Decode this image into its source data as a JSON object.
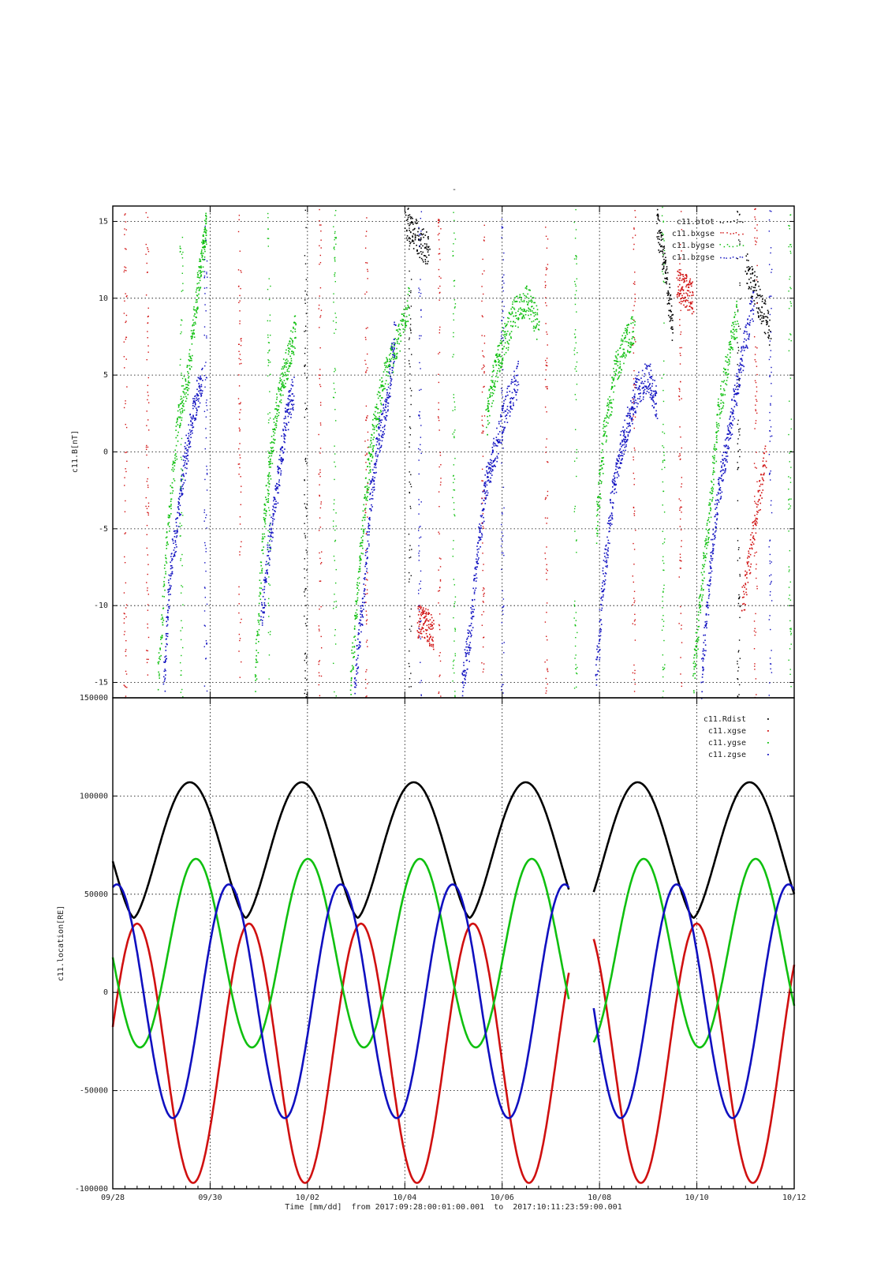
{
  "title": "-",
  "colors": {
    "btot": "#000000",
    "bxgse": "#d01010",
    "bygse": "#10c010",
    "bzgse": "#1010c0",
    "rdist": "#000000",
    "xgse": "#d01010",
    "ygse": "#10c010",
    "zgse": "#1010c0"
  },
  "chart_data": [
    {
      "type": "scatter",
      "title": "",
      "ylabel": "c11.B[nT]",
      "ylim": [
        -16,
        16
      ],
      "yticks": [
        "15",
        "10",
        "5",
        "0",
        "-5",
        "-10",
        "-15"
      ],
      "ytick_values": [
        15,
        10,
        5,
        0,
        -5,
        -10,
        -15
      ],
      "xlim_days": [
        "2017-09-28",
        "2017-10-12"
      ],
      "grid": true,
      "legend_position": "top-right",
      "legend": [
        "c11.btot",
        "c11.bxgse",
        "c11.bygse",
        "c11.bzgse"
      ],
      "series": [
        {
          "name": "c11.bygse",
          "color": "#10c010",
          "segments": [
            {
              "x": [
                "09/28 22:00",
                "09/29 03:00",
                "09/29 08:00",
                "09/29 13:00",
                "09/29 17:00",
                "09/29 20:00",
                "09/29 22:00"
              ],
              "y": [
                -15,
                -5,
                2,
                5,
                10,
                13,
                15
              ]
            },
            {
              "x": [
                "09/30 22:00",
                "10/01 02:00",
                "10/01 06:00",
                "10/01 10:00",
                "10/01 14:00",
                "10/01 18:00"
              ],
              "y": [
                -15,
                -5,
                0,
                4,
                6,
                8
              ]
            },
            {
              "x": [
                "10/02 21:00",
                "10/03 01:00",
                "10/03 05:00",
                "10/03 09:00",
                "10/03 14:00",
                "10/03 20:00",
                "10/04 02:00"
              ],
              "y": [
                -15,
                -8,
                -2,
                2,
                5,
                7,
                10
              ]
            },
            {
              "x": [
                "10/05 16:00",
                "10/05 20:00",
                "10/06 00:00",
                "10/06 06:00",
                "10/06 12:00",
                "10/06 18:00"
              ],
              "y": [
                2,
                5,
                7,
                9,
                10,
                8
              ]
            },
            {
              "x": [
                "10/07 22:00",
                "10/08 02:00",
                "10/08 07:00",
                "10/08 12:00",
                "10/08 17:00"
              ],
              "y": [
                -5,
                1,
                5,
                7,
                8
              ]
            },
            {
              "x": [
                "10/09 22:00",
                "10/10 02:00",
                "10/10 06:00",
                "10/10 10:00",
                "10/10 15:00",
                "10/10 20:00"
              ],
              "y": [
                -15,
                -9,
                -4,
                2,
                6,
                9
              ]
            }
          ]
        },
        {
          "name": "c11.bzgse",
          "color": "#1010c0",
          "segments": [
            {
              "x": [
                "09/29 01:00",
                "09/29 04:00",
                "09/29 08:00",
                "09/29 12:00",
                "09/29 16:00",
                "09/29 20:00"
              ],
              "y": [
                -15,
                -8,
                -4,
                0,
                3,
                5
              ]
            },
            {
              "x": [
                "10/01 01:00",
                "10/01 05:00",
                "10/01 09:00",
                "10/01 13:00",
                "10/01 17:00"
              ],
              "y": [
                -11,
                -6,
                -2,
                2,
                4
              ]
            },
            {
              "x": [
                "10/02 23:00",
                "10/03 03:00",
                "10/03 07:00",
                "10/03 11:00",
                "10/03 15:00",
                "10/03 19:00"
              ],
              "y": [
                -15,
                -10,
                -3,
                1,
                3,
                8
              ]
            },
            {
              "x": [
                "10/05 04:00",
                "10/05 08:00",
                "10/05 12:00",
                "10/05 16:00",
                "10/05 20:00",
                "10/06 02:00",
                "10/06 08:00"
              ],
              "y": [
                -15,
                -12,
                -6,
                -2,
                0,
                3,
                5
              ]
            },
            {
              "x": [
                "10/07 22:00",
                "10/08 02:00",
                "10/08 06:00",
                "10/08 10:00",
                "10/08 14:00",
                "10/08 18:00",
                "10/09 00:00",
                "10/09 04:00"
              ],
              "y": [
                -15,
                -8,
                -3,
                0,
                2,
                4,
                5,
                3
              ]
            },
            {
              "x": [
                "10/10 02:00",
                "10/10 06:00",
                "10/10 10:00",
                "10/10 14:00",
                "10/10 18:00",
                "10/10 22:00",
                "10/11 04:00"
              ],
              "y": [
                -15,
                -8,
                -3,
                0,
                3,
                6,
                10
              ]
            }
          ]
        },
        {
          "name": "c11.btot",
          "color": "#000000",
          "segments": [
            {
              "x": [
                "10/04 00:00",
                "10/04 06:00",
                "10/04 12:00"
              ],
              "y": [
                15,
                14,
                13
              ]
            },
            {
              "x": [
                "10/09 04:00",
                "10/09 08:00",
                "10/09 12:00"
              ],
              "y": [
                15,
                12,
                8
              ]
            },
            {
              "x": [
                "10/11 00:00",
                "10/11 06:00",
                "10/11 12:00"
              ],
              "y": [
                12,
                10,
                8
              ]
            }
          ]
        },
        {
          "name": "c11.bxgse",
          "color": "#d01010",
          "segments": [
            {
              "x": [
                "10/04 06:00",
                "10/04 10:00",
                "10/04 14:00"
              ],
              "y": [
                -11,
                -11,
                -12
              ]
            },
            {
              "x": [
                "10/09 14:00",
                "10/09 18:00",
                "10/09 22:00"
              ],
              "y": [
                11,
                10.5,
                10
              ]
            },
            {
              "x": [
                "10/10 22:00",
                "10/11 04:00",
                "10/11 10:00"
              ],
              "y": [
                -10,
                -5,
                0
              ]
            }
          ]
        }
      ]
    },
    {
      "type": "line",
      "title": "",
      "ylabel": "c11.location[RE]",
      "xlabel": "Time [mm/dd]  from 2017:09:28:00:01:00.001  to  2017:10:11:23:59:00.001",
      "ylim": [
        -100000,
        150000
      ],
      "yticks": [
        "150000",
        "100000",
        "50000",
        "0",
        "-50000",
        "-100000"
      ],
      "ytick_values": [
        150000,
        100000,
        50000,
        0,
        -50000,
        -100000
      ],
      "xticks": [
        "09/28",
        "09/30",
        "10/02",
        "10/04",
        "10/06",
        "10/08",
        "10/10",
        "10/12"
      ],
      "xlim_days": [
        "2017-09-28",
        "2017-10-12"
      ],
      "grid": true,
      "legend_position": "top-right",
      "legend": [
        "c11.Rdist",
        "c11.xgse",
        "c11.ygse",
        "c11.zgse"
      ],
      "data_gap": [
        "10/07 09:00",
        "10/07 21:00"
      ],
      "orbit_period_days": 2.3,
      "series": [
        {
          "name": "c11.Rdist",
          "color": "#000000",
          "min": 38000,
          "max": 107000,
          "minima": [
            "09/28 12:00",
            "09/30 19:00",
            "10/03 02:00",
            "10/05 09:00",
            "10/09 23:00"
          ],
          "maxima": [
            "09/29 14:00",
            "10/01 21:00",
            "10/04 04:00",
            "10/06 11:00",
            "10/08 17:00",
            "10/11 01:00"
          ]
        },
        {
          "name": "c11.xgse",
          "color": "#d01010",
          "min": -97000,
          "max": 35000,
          "maxima": [
            "09/28 12:00",
            "09/30 19:00",
            "10/03 02:00",
            "10/05 09:00",
            "10/09 23:00"
          ],
          "minima": [
            "09/29 14:00",
            "10/01 21:00",
            "10/04 04:00",
            "10/06 11:00",
            "10/08 17:00",
            "10/10 22:00"
          ]
        },
        {
          "name": "c11.ygse",
          "color": "#10c010",
          "min": -28000,
          "max": 68000,
          "maxima": [
            "09/29 17:00",
            "10/02 00:00",
            "10/04 07:00",
            "10/06 14:00",
            "10/08 21:00",
            "10/11 04:00"
          ],
          "minima": [
            "09/28 16:00",
            "09/30 23:00",
            "10/03 06:00",
            "10/05 13:00",
            "10/10 03:00"
          ]
        },
        {
          "name": "c11.zgse",
          "color": "#1010c0",
          "min": -64000,
          "max": 55000,
          "maxima": [
            "09/28 02:00",
            "09/30 09:00",
            "10/02 16:00",
            "10/04 23:00",
            "10/07 06:00",
            "10/09 14:00",
            "10/11 20:00"
          ],
          "minima": [
            "09/28 22:00",
            "10/01 05:00",
            "10/03 12:00",
            "10/05 19:00",
            "10/08 02:00",
            "10/10 09:00"
          ]
        }
      ]
    }
  ]
}
